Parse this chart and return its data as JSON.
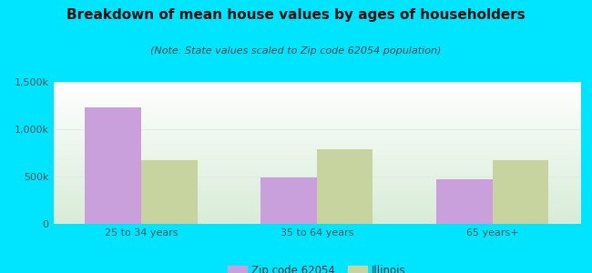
{
  "title": "Breakdown of mean house values by ages of householders",
  "subtitle": "(Note: State values scaled to Zip code 62054 population)",
  "categories": [
    "25 to 34 years",
    "35 to 64 years",
    "65 years+"
  ],
  "zip_values": [
    1230000,
    490000,
    475000
  ],
  "state_values": [
    670000,
    790000,
    670000
  ],
  "zip_color": "#c9a0dc",
  "state_color": "#c8d4a0",
  "background_outer": "#00e5ff",
  "background_inner_top": "#ffffff",
  "background_inner_bottom": "#d8ecd8",
  "ylim": [
    0,
    1500000
  ],
  "yticks": [
    0,
    500000,
    1000000,
    1500000
  ],
  "ytick_labels": [
    "0",
    "500k",
    "1,000k",
    "1,500k"
  ],
  "bar_width": 0.32,
  "legend_zip": "Zip code 62054",
  "legend_state": "Illinois",
  "title_fontsize": 11,
  "subtitle_fontsize": 8,
  "axis_fontsize": 8,
  "legend_fontsize": 8.5,
  "grid_color": "#e8f0e8",
  "tick_color": "#555555"
}
